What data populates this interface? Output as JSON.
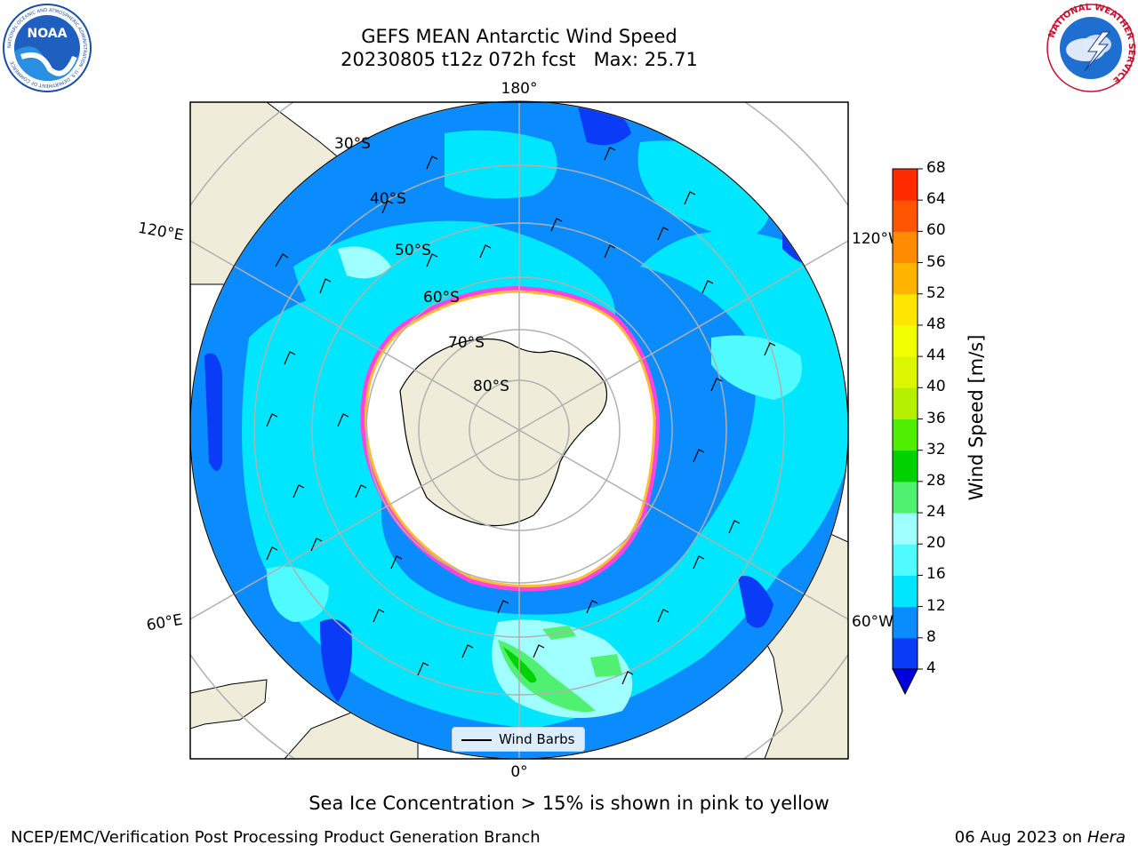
{
  "header": {
    "title_line1": "GEFS MEAN Antarctic Wind Speed",
    "title_line2": "20230805 t12z 072h fcst   Max: 25.71"
  },
  "logos": {
    "left": {
      "name": "noaa-logo",
      "text": "NOAA",
      "ring_text": "NATIONAL OCEANIC AND ATMOSPHERIC ADMINISTRATION · U.S. DEPARTMENT OF COMMERCE"
    },
    "right": {
      "name": "nws-logo",
      "ring_text": "NATIONAL WEATHER SERVICE"
    }
  },
  "map": {
    "projection": "south-polar-stereographic",
    "lat_labels": [
      "30°S",
      "40°S",
      "50°S",
      "60°S",
      "70°S",
      "80°S"
    ],
    "lon_labels": {
      "top": "180°",
      "bottom": "0°",
      "upper_left": "120°E",
      "lower_left": "60°E",
      "upper_right": "120°W",
      "lower_right": "60°W"
    },
    "colors": {
      "land": "#efedd9",
      "ice_free_pack": "#ffffff",
      "sea_ice_edge": "#ff44dd",
      "sea_ice_inner": "#ffbb33",
      "grid": "#b0b0b0"
    },
    "legend": {
      "label": "Wind Barbs"
    }
  },
  "colorbar": {
    "title": "Wind Speed [m/s]",
    "ticks": [
      "4",
      "8",
      "12",
      "16",
      "20",
      "24",
      "28",
      "32",
      "36",
      "40",
      "44",
      "48",
      "52",
      "56",
      "60",
      "64",
      "68"
    ],
    "colors": [
      "#0a3cf7",
      "#0a8cff",
      "#00e6ff",
      "#50fbff",
      "#a0ffff",
      "#50f070",
      "#00d200",
      "#50ee00",
      "#b4f000",
      "#dcf500",
      "#f0ff00",
      "#ffe600",
      "#ffb400",
      "#ff8c00",
      "#ff5500",
      "#ff2a00"
    ],
    "under_color": "#0000dc"
  },
  "footer": {
    "note": "Sea Ice Concentration > 15% is shown in pink to yellow",
    "left": "NCEP/EMC/Verification Post Processing Product Generation Branch",
    "right_date": "06 Aug 2023 on",
    "right_machine": "Hera"
  }
}
